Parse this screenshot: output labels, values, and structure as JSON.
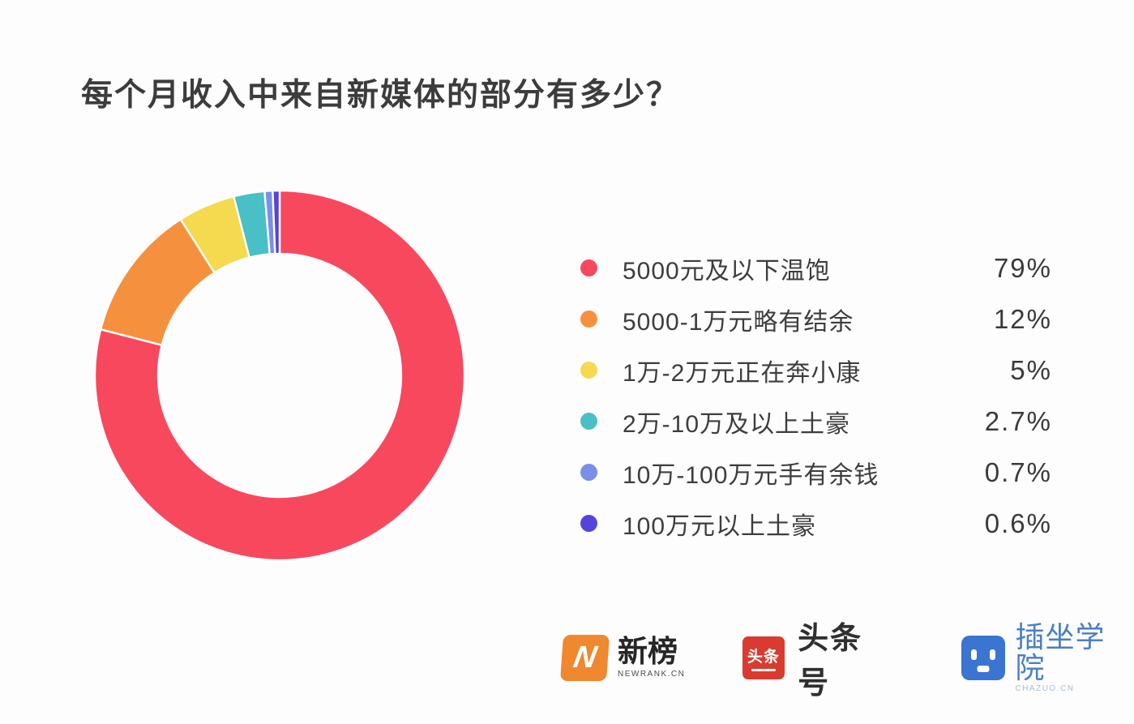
{
  "title": "每个月收入中来自新媒体的部分有多少？",
  "chart_data": {
    "type": "pie",
    "subtype": "donut",
    "title": "每个月收入中来自新媒体的部分有多少？",
    "legend_position": "right",
    "start_angle_deg": 0,
    "direction": "clockwise",
    "inner_radius_ratio": 0.66,
    "slice_gap_color": "#ffffff",
    "series": [
      {
        "label": "5000元及以下温饱",
        "value": 79,
        "display": "79%",
        "color": "#F8485E"
      },
      {
        "label": "5000-1万元略有结余",
        "value": 12,
        "display": "12%",
        "color": "#F5913E"
      },
      {
        "label": "1万-2万元正在奔小康",
        "value": 5,
        "display": "5%",
        "color": "#F5D94E"
      },
      {
        "label": "2万-10万及以上土豪",
        "value": 2.7,
        "display": "2.7%",
        "color": "#49BFC6"
      },
      {
        "label": "10万-100万元手有余钱",
        "value": 0.7,
        "display": "0.7%",
        "color": "#7B8FE8"
      },
      {
        "label": "100万元以上土豪",
        "value": 0.6,
        "display": "0.6%",
        "color": "#5345DC"
      }
    ]
  },
  "footer": {
    "newrank": {
      "icon_letter": "N",
      "text": "新榜",
      "subtext": "NEWRANK.CN",
      "icon_color": "#F0882F"
    },
    "toutiao": {
      "icon_text": "头条",
      "text": "头条号",
      "icon_color": "#D93B30"
    },
    "chazuo": {
      "text": "插坐学院",
      "subtext": "CHAZUO.CN",
      "icon_color": "#3B74D1",
      "text_color": "#4A80C4"
    }
  }
}
